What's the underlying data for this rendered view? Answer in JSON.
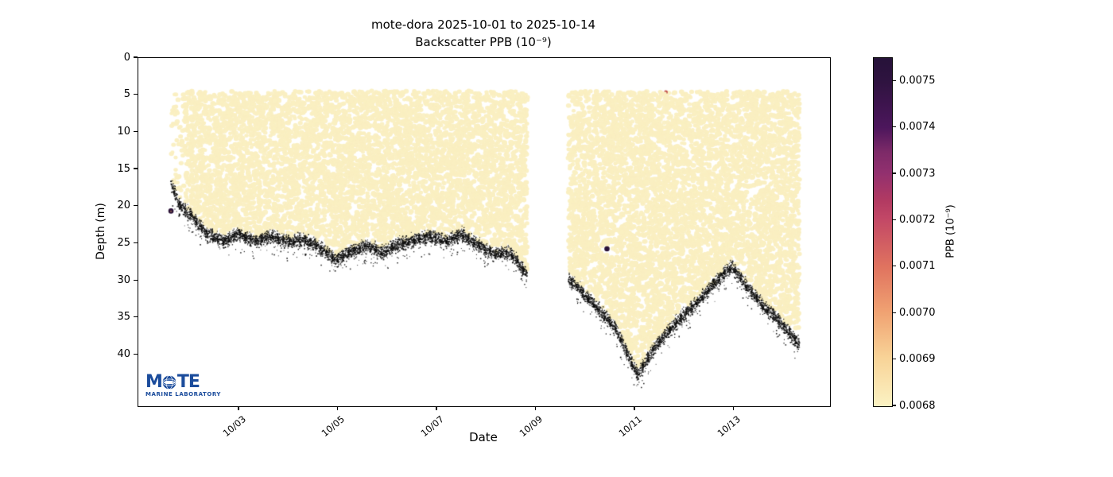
{
  "title": {
    "line1": "mote-dora 2025-10-01 to 2025-10-14",
    "line2": "Backscatter PPB (10⁻⁹)"
  },
  "axes": {
    "xlabel": "Date",
    "ylabel": "Depth (m)",
    "x_ticks": [
      {
        "label": "10/03",
        "day": 2
      },
      {
        "label": "10/05",
        "day": 4
      },
      {
        "label": "10/07",
        "day": 6
      },
      {
        "label": "10/09",
        "day": 8
      },
      {
        "label": "10/11",
        "day": 10
      },
      {
        "label": "10/13",
        "day": 12
      }
    ],
    "y_ticks": [
      0,
      5,
      10,
      15,
      20,
      25,
      30,
      35,
      40
    ]
  },
  "colorbar": {
    "label": "PPB (10⁻⁹)",
    "vmin": 0.0068,
    "vmax": 0.00755,
    "tick_labels": [
      "0.0075",
      "0.0074",
      "0.0073",
      "0.0072",
      "0.0071",
      "0.0070",
      "0.0069",
      "0.0068"
    ],
    "tick_values": [
      0.0075,
      0.0074,
      0.0073,
      0.0072,
      0.0071,
      0.007,
      0.0069,
      0.0068
    ],
    "colormap": "magma_r",
    "gradient_stops": [
      [
        "0%",
        "#261239"
      ],
      [
        "7%",
        "#2f1340"
      ],
      [
        "20%",
        "#4c165c"
      ],
      [
        "27%",
        "#7d2a68"
      ],
      [
        "33%",
        "#92306f"
      ],
      [
        "41%",
        "#b23a62"
      ],
      [
        "46%",
        "#c24766"
      ],
      [
        "60%",
        "#e0735f"
      ],
      [
        "73%",
        "#f0a272"
      ],
      [
        "86%",
        "#f8d397"
      ],
      [
        "100%",
        "#fbf2c3"
      ]
    ]
  },
  "logo": {
    "word_prefix": "M",
    "word_suffix": "TE",
    "subtitle": "MARINE LABORATORY",
    "color": "#1b4c9c"
  },
  "chart_data": {
    "type": "scatter",
    "title": "mote-dora 2025-10-01 to 2025-10-14",
    "subtitle": "Backscatter PPB (10⁻⁹)",
    "xlabel": "Date",
    "ylabel": "Depth (m)",
    "x_range_dates": [
      "2025-10-01",
      "2025-10-14"
    ],
    "x_axis_days_from_oct1": [
      -0.04,
      13.936
    ],
    "ylim_m": [
      0,
      46.9
    ],
    "grid": false,
    "legend": "colorbar-right",
    "point_value_base_ppb": 0.0068,
    "point_color_base": "#faefc1",
    "surface_depth_m": 4.6,
    "data_segments_days": [
      {
        "start_day": 0.62,
        "end_day": 7.82
      },
      {
        "start_day": 8.65,
        "end_day": 13.32
      }
    ],
    "seafloor_profile_day_depth": [
      [
        0.62,
        16.8
      ],
      [
        0.8,
        19.8
      ],
      [
        1.05,
        21.3
      ],
      [
        1.35,
        23.6
      ],
      [
        1.7,
        24.6
      ],
      [
        2.0,
        23.6
      ],
      [
        2.3,
        24.6
      ],
      [
        2.65,
        23.9
      ],
      [
        3.0,
        24.8
      ],
      [
        3.3,
        24.3
      ],
      [
        3.6,
        25.3
      ],
      [
        3.95,
        27.2
      ],
      [
        4.25,
        26.0
      ],
      [
        4.6,
        25.2
      ],
      [
        4.9,
        26.2
      ],
      [
        5.2,
        25.0
      ],
      [
        5.55,
        24.4
      ],
      [
        5.85,
        24.0
      ],
      [
        6.2,
        24.6
      ],
      [
        6.5,
        23.7
      ],
      [
        6.85,
        25.2
      ],
      [
        7.15,
        26.3
      ],
      [
        7.5,
        26.2
      ],
      [
        7.82,
        29.2
      ],
      [
        8.65,
        29.6
      ],
      [
        8.95,
        31.6
      ],
      [
        9.25,
        33.6
      ],
      [
        9.6,
        36.3
      ],
      [
        9.9,
        40.5
      ],
      [
        10.05,
        42.6
      ],
      [
        10.35,
        39.4
      ],
      [
        10.7,
        36.4
      ],
      [
        11.0,
        34.4
      ],
      [
        11.35,
        32.2
      ],
      [
        11.65,
        29.9
      ],
      [
        11.95,
        28.0
      ],
      [
        12.3,
        31.0
      ],
      [
        12.6,
        33.4
      ],
      [
        12.95,
        35.6
      ],
      [
        13.32,
        38.6
      ]
    ],
    "bottom_echo_color": "#0a0a0a",
    "outlier_points": [
      {
        "day": 0.62,
        "depth_m": 20.6,
        "color": "#2b1338",
        "value_est_ppb": 0.0075
      },
      {
        "day": 9.43,
        "depth_m": 25.7,
        "color": "#2b1338",
        "value_est_ppb": 0.0075
      },
      {
        "day": 10.62,
        "depth_m": 4.6,
        "color": "#c2544e",
        "value_est_ppb": 0.0071
      }
    ]
  }
}
